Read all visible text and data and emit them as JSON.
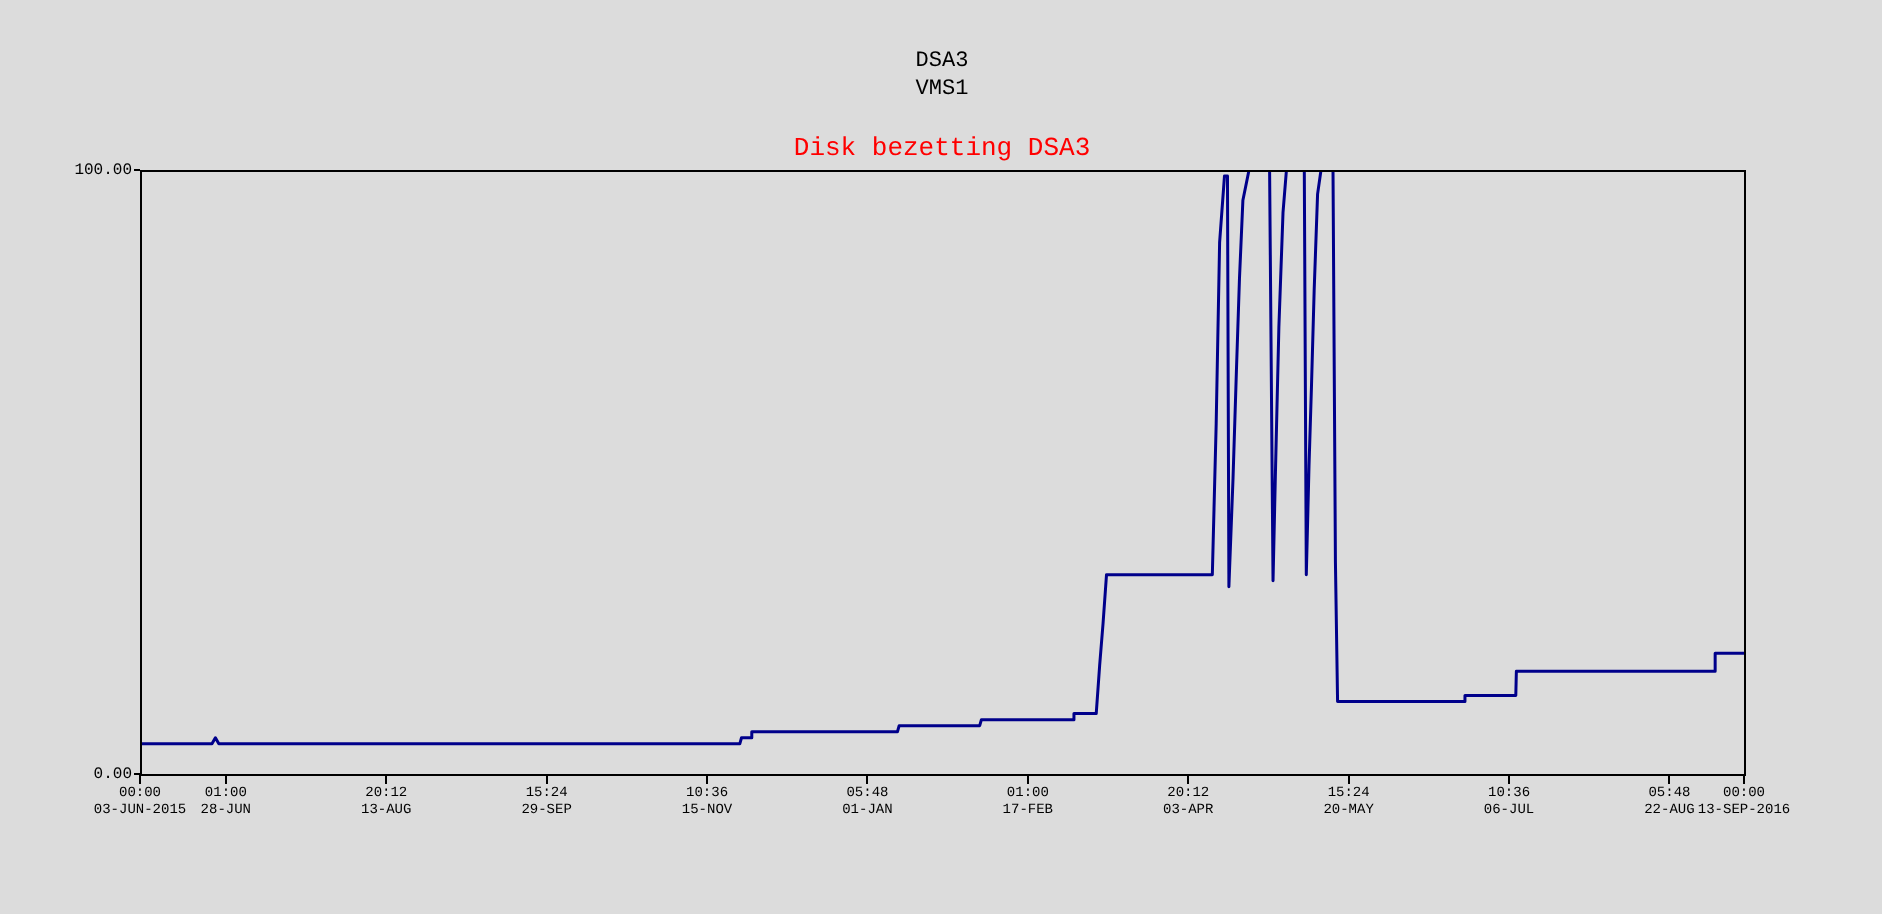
{
  "chart_data": {
    "type": "line",
    "title": "Disk bezetting DSA3",
    "annotations": [
      "DSA3",
      "VMS1"
    ],
    "x": [
      "2015-06-03T00:00",
      "2015-06-24T00:00",
      "2015-06-25T00:00",
      "2015-06-26T00:00",
      "2015-11-25T00:00",
      "2015-11-25T12:00",
      "2015-11-28T00:00",
      "2015-11-28T12:00",
      "2016-01-10T00:00",
      "2016-01-10T12:00",
      "2016-02-03T00:00",
      "2016-02-03T12:00",
      "2016-03-01T00:00",
      "2016-03-01T12:00",
      "2016-03-08T00:00",
      "2016-03-09T00:00",
      "2016-03-10T00:00",
      "2016-03-11T00:00",
      "2016-04-10T21:00",
      "2016-04-12T00:00",
      "2016-04-13T00:00",
      "2016-04-14T10:00",
      "2016-04-15T07:00",
      "2016-04-15T17:00",
      "2016-04-16T22:00",
      "2016-04-17T22:00",
      "2016-04-18T19:00",
      "2016-04-19T19:00",
      "2016-04-21T14:00",
      "2016-04-27T14:00",
      "2016-04-28T14:00",
      "2016-04-29T07:00",
      "2016-04-30T07:00",
      "2016-05-01T12:00",
      "2016-05-02T12:00",
      "2016-05-07T17:00",
      "2016-05-08T07:00",
      "2016-05-09T02:00",
      "2016-05-09T19:00",
      "2016-05-10T14:00",
      "2016-05-11T14:00",
      "2016-05-12T14:00",
      "2016-05-16T02:00",
      "2016-05-16T19:00",
      "2016-05-17T10:00",
      "2016-06-23T10:00",
      "2016-06-23T14:00",
      "2016-07-08T10:00",
      "2016-07-08T14:00",
      "2016-09-04T07:00",
      "2016-09-04T14:00",
      "2016-09-13T00:00"
    ],
    "series": [
      {
        "color": "#00008b",
        "values": [
          5,
          5,
          6,
          5,
          5,
          6,
          6,
          7,
          7,
          8,
          8,
          9,
          9,
          10,
          10,
          18,
          25,
          33,
          33,
          58,
          88,
          99,
          99,
          31,
          49,
          67,
          82,
          95,
          100,
          100,
          32,
          50,
          74,
          93,
          100,
          100,
          33,
          51,
          64,
          80,
          96,
          100,
          100,
          35,
          12,
          12,
          13,
          13,
          17,
          17,
          20,
          20
        ]
      }
    ],
    "xlim": [
      "2015-06-03T00:00",
      "2016-09-13T00:00"
    ],
    "xticks": [
      {
        "value": "2015-06-03T00:00",
        "label": "00:00\n03-JUN-2015"
      },
      {
        "value": "2015-06-28T01:00",
        "label": "01:00\n28-JUN"
      },
      {
        "value": "2015-08-13T20:12",
        "label": "20:12\n13-AUG"
      },
      {
        "value": "2015-09-29T15:24",
        "label": "15:24\n29-SEP"
      },
      {
        "value": "2015-11-15T10:36",
        "label": "10:36\n15-NOV"
      },
      {
        "value": "2016-01-01T05:48",
        "label": "05:48\n01-JAN"
      },
      {
        "value": "2016-02-17T01:00",
        "label": "01:00\n17-FEB"
      },
      {
        "value": "2016-04-03T20:12",
        "label": "20:12\n03-APR"
      },
      {
        "value": "2016-05-20T15:24",
        "label": "15:24\n20-MAY"
      },
      {
        "value": "2016-07-06T10:36",
        "label": "10:36\n06-JUL"
      },
      {
        "value": "2016-08-22T05:48",
        "label": "05:48\n22-AUG"
      },
      {
        "value": "2016-09-13T00:00",
        "label": "00:00\n13-SEP-2016"
      }
    ],
    "ylim": [
      0,
      100
    ],
    "yticks": [
      {
        "value": 0,
        "label": "0.00"
      },
      {
        "value": 100,
        "label": "100.00"
      }
    ],
    "marker": "none",
    "line_style": "solid"
  }
}
